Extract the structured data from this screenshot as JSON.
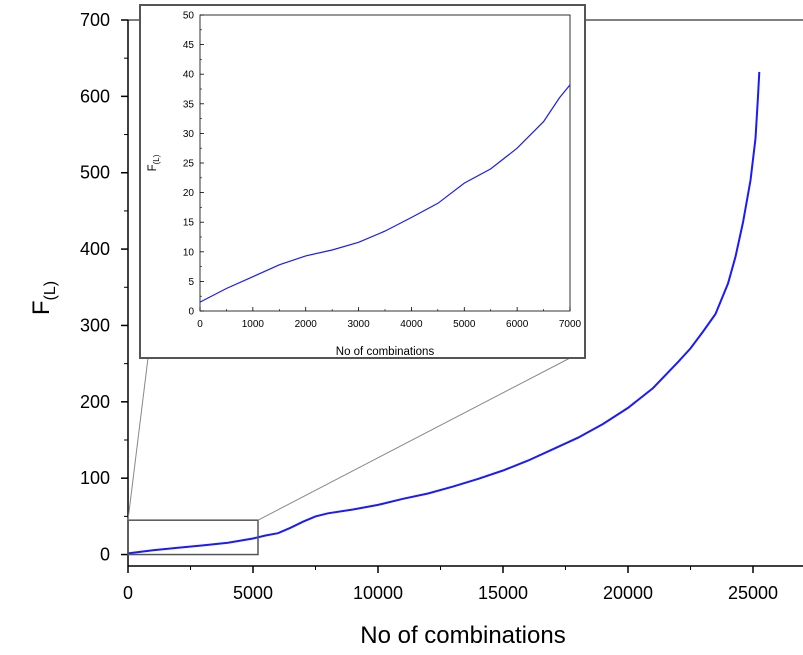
{
  "chart_data": [
    {
      "id": "main",
      "type": "line",
      "xlabel": "No of combinations",
      "ylabel": "F",
      "ylabel_subscript": "(L)",
      "xlim": [
        0,
        27000
      ],
      "ylim": [
        -15,
        700
      ],
      "x_ticks": [
        0,
        5000,
        10000,
        15000,
        20000,
        25000
      ],
      "y_ticks": [
        0,
        100,
        200,
        300,
        400,
        500,
        600,
        700
      ],
      "series_color": "#1a1aff",
      "series": [
        {
          "x": [
            0,
            1000,
            2000,
            3000,
            4000,
            5000,
            5500,
            6000,
            6500,
            7000,
            7500,
            8000,
            9000,
            10000,
            11000,
            12000,
            13000,
            14000,
            15000,
            16000,
            17000,
            18000,
            19000,
            20000,
            21000,
            22000,
            22500,
            23000,
            23500,
            24000,
            24300,
            24600,
            24900,
            25100,
            25200,
            25250
          ],
          "y": [
            1.5,
            5.5,
            9,
            12,
            15.5,
            21,
            25,
            28,
            35,
            43,
            50,
            54,
            59,
            65,
            73,
            80,
            89,
            99,
            110,
            123,
            138,
            153,
            171,
            192,
            218,
            252,
            270,
            292,
            315,
            355,
            390,
            435,
            490,
            545,
            600,
            632
          ]
        }
      ],
      "zoom_box": {
        "x": [
          0,
          5200
        ],
        "y": [
          0,
          45
        ]
      }
    },
    {
      "id": "inset",
      "type": "line",
      "xlabel": "No of combinations",
      "ylabel": "F",
      "ylabel_subscript": "(L)",
      "xlim": [
        0,
        7000
      ],
      "ylim": [
        0,
        50
      ],
      "x_ticks": [
        0,
        1000,
        2000,
        3000,
        4000,
        5000,
        6000,
        7000
      ],
      "y_ticks": [
        0,
        5,
        10,
        15,
        20,
        25,
        30,
        35,
        40,
        45,
        50
      ],
      "series_color": "#1a1aff",
      "series": [
        {
          "x": [
            0,
            500,
            1000,
            1500,
            2000,
            2500,
            3000,
            3500,
            4000,
            4500,
            5000,
            5500,
            6000,
            6500,
            6800,
            7000
          ],
          "y": [
            1.5,
            3.8,
            5.8,
            7.8,
            9.3,
            10.3,
            11.6,
            13.5,
            15.8,
            18.2,
            21.6,
            24,
            27.5,
            32,
            36,
            38.2
          ]
        }
      ]
    }
  ]
}
